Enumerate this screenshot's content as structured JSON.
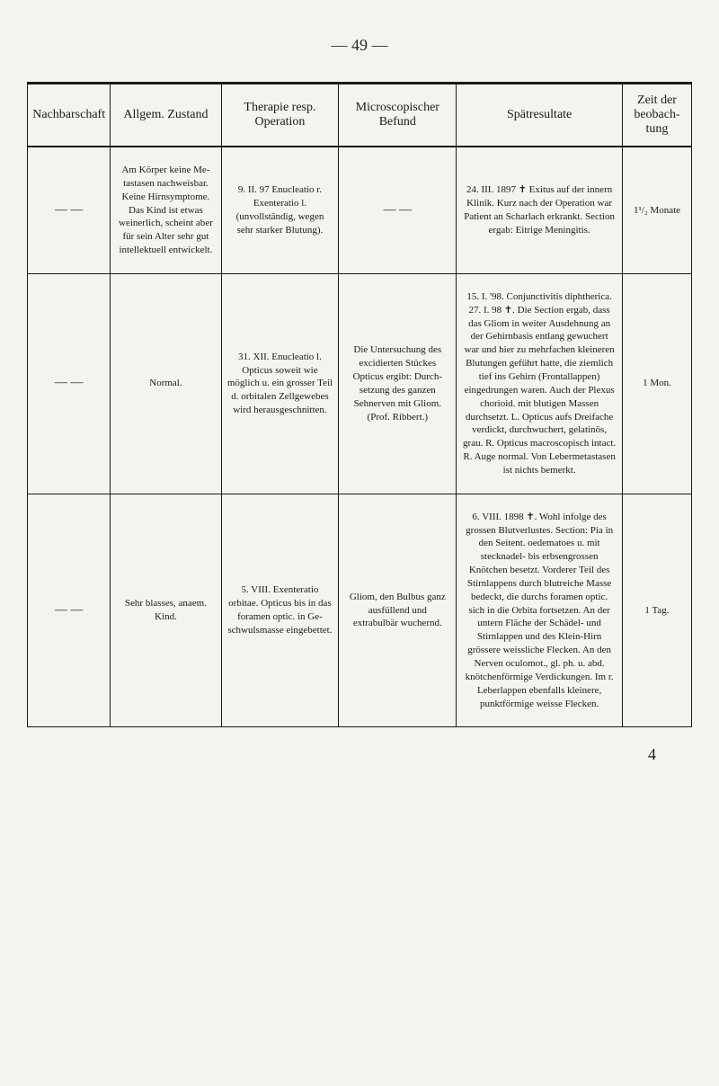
{
  "page_number_top": "— 49 —",
  "page_number_bottom": "4",
  "headers": {
    "nachbarschaft": "Nachbarschaft",
    "allgem": "Allgem. Zustand",
    "therapie": "Therapie resp. Operation",
    "microscop": "Microscopischer Befund",
    "spatresultate": "Spätresultate",
    "zeit": "Zeit der beobach­tung"
  },
  "rows": [
    {
      "nach": "— —",
      "allg": "Am Körper keine Me­tastasen nachweisbar. Keine Hirnsymptome. Das Kind ist etwas weinerlich, scheint aber für sein Alter sehr gut intellektuell entwickelt.",
      "ther": "9. II. 97 Enucleatio r. Exenteratio l. (unvollständig, wegen sehr starker Blutung).",
      "micr": "— —",
      "spat": "24. III. 1897 ✝ Exitus auf der innern Klinik. Kurz nach der Operation war Patient an Scharlach er­krankt. Section ergab: Eitrige Meningitis.",
      "zeit": "1¹/₂ Monate"
    },
    {
      "nach": "— —",
      "allg": "Normal.",
      "ther": "31. XII. Enucleatio l. Opticus soweit wie möglich u. ein grosser Teil d. orbitalen Zell­gewebes wird heraus­geschnitten.",
      "micr": "Die Untersuchung des excidierten Stückes Opticus ergibt: Durch­setzung des ganzen Sehnerven mit Gliom. (Prof. Ribbert.)",
      "spat": "15. I. '98. Conjunctivitis diphtherica. 27. I. 98 ✝. Die Section ergab, dass das Gliom in weiter Ausdehnung an der Gehirnbasis entlang gewu­chert war und hier zu mehrfachen kleineren Blu­tungen geführt hatte, die ziemlich tief ins Gehirn (Frontallappen) eingedrun­gen waren. Auch der Plexus chorioid. mit blu­tigen Massen durchsetzt. L. Opticus aufs Dreifache verdickt, durchwuchert, gelatinös, grau. R. Opticus macroscopisch intact. R. Auge normal. Von Leber­metastasen ist nichts be­merkt.",
      "zeit": "1 Mon."
    },
    {
      "nach": "— —",
      "allg": "Sehr blasses, anaem. Kind.",
      "ther": "5. VIII. Exenteratio orbitae. Opticus bis in das foramen optic. in Ge­schwulsmasse einge­bettet.",
      "micr": "Gliom, den Bulbus ganz ausfüllend und extrabulbär wuchernd.",
      "spat": "6. VIII. 1898 ✝. Wohl infolge des grossen Blut­verlustes. Section: Pia in den Seitent. oedematoes u. mit stecknadel- bis erbsen­grossen Knötchen besetzt. Vorderer Teil des Stirn­lappens durch blutreiche Masse bedeckt, die durchs foramen optic. sich in die Orbita fortsetzen. An der untern Fläche der Schädel- und Stirnlappen und des Klein-Hirn grössere weiss­liche Flecken. An den Nerven oculomot., gl. ph. u. abd. knötchenförmige Verdickungen. Im r. Leberlappen ebenfalls kleinere, punktförmige weisse Flecken.",
      "zeit": "1 Tag."
    }
  ],
  "colors": {
    "background": "#f5f3ee",
    "text": "#1a1a1a",
    "border": "#1a1a1a"
  }
}
